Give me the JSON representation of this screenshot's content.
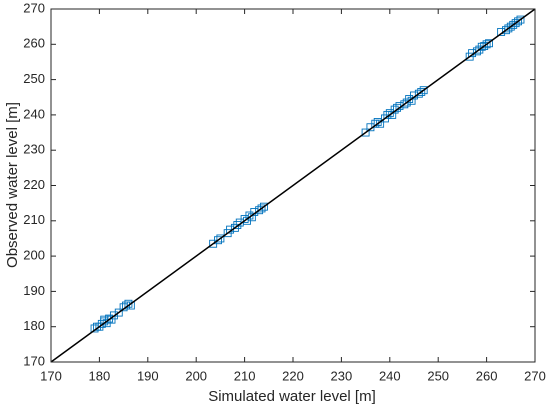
{
  "chart_data": {
    "type": "scatter",
    "x_label": "Simulated water level [m]",
    "y_label": "Observed water level [m]",
    "xlim": [
      170,
      270
    ],
    "ylim": [
      170,
      270
    ],
    "xticks": [
      170,
      180,
      190,
      200,
      210,
      220,
      230,
      240,
      250,
      260,
      270
    ],
    "yticks": [
      170,
      180,
      190,
      200,
      210,
      220,
      230,
      240,
      250,
      260,
      270
    ],
    "marker": "square",
    "color": "#0072bd",
    "reference_line_color": "#000000",
    "x": [
      179,
      179.5,
      180,
      180.5,
      181,
      181,
      181.5,
      182,
      182.5,
      183,
      184,
      185,
      185.5,
      186,
      186.5,
      203.5,
      204.5,
      205,
      206.5,
      207,
      208,
      208.5,
      209,
      210,
      210.5,
      211,
      211.5,
      212,
      213,
      213.5,
      214,
      235,
      236,
      237,
      237.5,
      238,
      239,
      239.5,
      240,
      240.5,
      241,
      241.5,
      242,
      243,
      243.5,
      244,
      244.5,
      245,
      246,
      246.5,
      247,
      256.5,
      257,
      258,
      258.5,
      259,
      259.5,
      260,
      260.5,
      263,
      264,
      264.5,
      265,
      265.5,
      266,
      266.5,
      267
    ],
    "values": [
      179.5,
      180,
      180,
      180.8,
      181.5,
      182,
      181,
      182.3,
      182,
      183.2,
      184,
      185.5,
      186,
      186.5,
      186,
      203.5,
      204.5,
      205,
      206.5,
      207.5,
      208,
      208.8,
      209.5,
      210.5,
      210,
      211.5,
      211,
      212.5,
      213,
      213.5,
      214,
      235,
      236.5,
      237.5,
      238,
      237.5,
      239,
      240,
      240.5,
      240,
      241.5,
      242,
      242.5,
      243,
      243.5,
      244.5,
      244,
      245.5,
      246,
      246.5,
      247,
      256.5,
      257.5,
      258,
      258.5,
      259.3,
      259.5,
      260,
      260.3,
      263.5,
      264,
      264.5,
      265,
      265.5,
      266,
      266.5,
      267
    ]
  }
}
